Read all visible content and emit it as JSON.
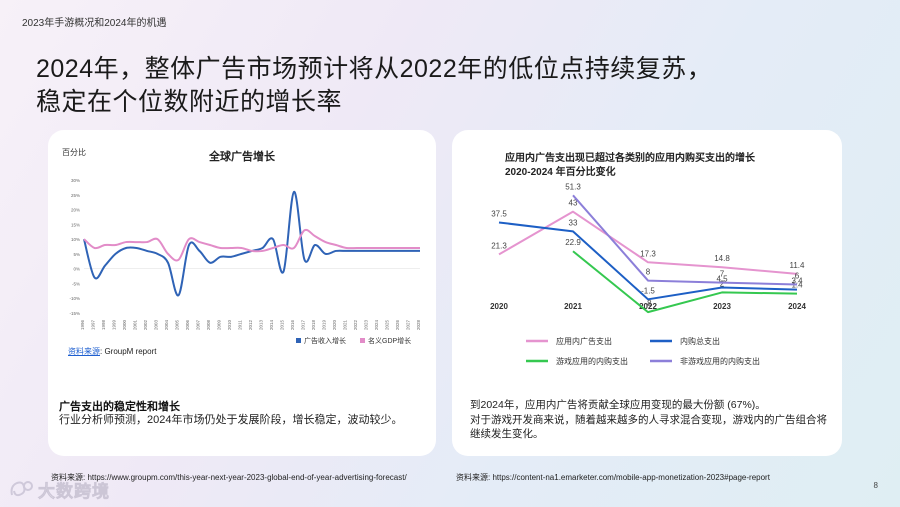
{
  "header": {
    "section": "2023年手游概况和2024年的机遇",
    "title_line1": "2024年，整体广告市场预计将从2022年的低位点持续复苏，",
    "title_line2": "稳定在个位数附近的增长率"
  },
  "left_card": {
    "source_label": "资料来源",
    "source_text": ": GroupM report",
    "section_title": "广告支出的稳定性和增长",
    "section_text": "行业分析师预测，2024年市场仍处于发展阶段，增长稳定，波动较少。",
    "footnote": "资料来源: https://www.groupm.com/this-year-next-year-2023-global-end-of-year-advertising-forecast/"
  },
  "right_card": {
    "text1": "到2024年，应用内广告将贡献全球应用变现的最大份额 (67%)。",
    "text2": "对于游戏开发商来说，随着越来越多的人寻求混合变现，游戏内的广告组合将继续发生变化。",
    "footnote": "资料来源: https://content-na1.emarketer.com/mobile-app-monetization-2023#page-report"
  },
  "page_number": "8",
  "logo": {
    "text": "大数跨境",
    "icon": "logo-mark-icon"
  },
  "chart_data": [
    {
      "type": "line",
      "title": "全球广告增长",
      "ylabel": "百分比",
      "ylim": [
        -15,
        30
      ],
      "yticks": [
        "30%",
        "25%",
        "20%",
        "15%",
        "10%",
        "5%",
        "0%",
        "-5%",
        "-10%",
        "-15%"
      ],
      "x": [
        "1996",
        "1997",
        "1998",
        "1999",
        "2000",
        "2001",
        "2002",
        "2003",
        "2004",
        "2005",
        "2006",
        "2007",
        "2008",
        "2009",
        "2010",
        "2011",
        "2012",
        "2013",
        "2014",
        "2015",
        "2016",
        "2017",
        "2018",
        "2019",
        "2020",
        "2021",
        "2022",
        "2023",
        "2024",
        "2025",
        "2026",
        "2027",
        "2028"
      ],
      "series": [
        {
          "name": "广告收入增长",
          "color": "#2f63b6",
          "values": [
            10,
            -3,
            1,
            5,
            7,
            7,
            6,
            5,
            2,
            -9,
            8,
            6,
            2,
            4,
            4,
            5,
            6,
            7,
            10,
            -1,
            26,
            3,
            8,
            5,
            6,
            6,
            6,
            6,
            6,
            6,
            6,
            6,
            6
          ]
        },
        {
          "name": "名义GDP增长",
          "color": "#e28cc8",
          "values": [
            10,
            7,
            8,
            8,
            9,
            9,
            9,
            10,
            5,
            3,
            10,
            9,
            8,
            7,
            7,
            7,
            6,
            6,
            7,
            8,
            7,
            13,
            11,
            9,
            8,
            7,
            7,
            7,
            7,
            7,
            7,
            7,
            7
          ]
        }
      ],
      "legend_position": "bottom-right"
    },
    {
      "type": "line",
      "title": "应用内广告支出现已超过各类别的应用内购买支出的增长",
      "subtitle": "2020-2024 年百分比变化",
      "categories": [
        "2020",
        "2021",
        "2022",
        "2023",
        "2024"
      ],
      "series": [
        {
          "name": "应用内广告支出",
          "color": "#e594cf",
          "values": [
            21.3,
            43,
            17.3,
            14.8,
            11.4
          ]
        },
        {
          "name": "内购总支出",
          "color": "#1d5fc5",
          "values": [
            37.5,
            33,
            -1.5,
            4.5,
            3.4
          ]
        },
        {
          "name": "游戏应用的内购支出",
          "color": "#35c850",
          "values": [
            null,
            22.9,
            -8,
            2,
            1.4
          ]
        },
        {
          "name": "非游戏应用的内购支出",
          "color": "#8c7fd9",
          "values": [
            null,
            51.3,
            8,
            7,
            6
          ]
        }
      ],
      "legend_position": "bottom"
    }
  ]
}
